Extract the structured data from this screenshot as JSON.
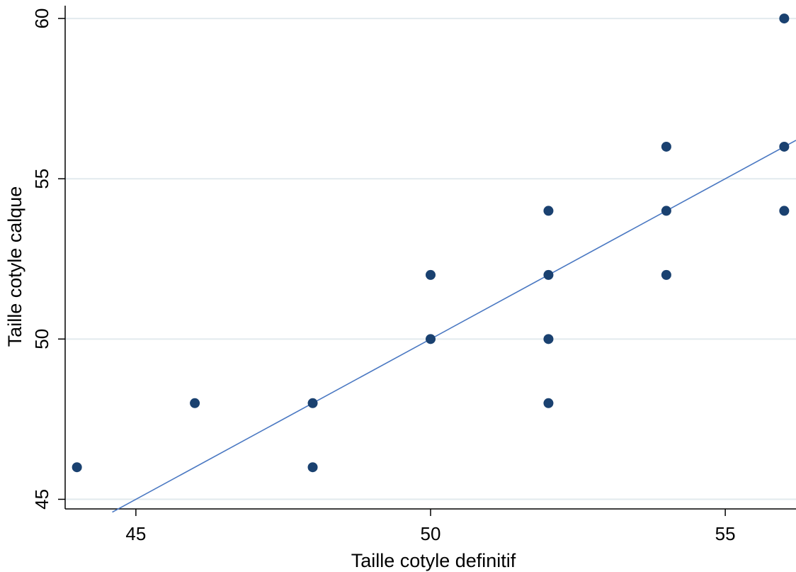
{
  "chart_data": {
    "type": "scatter",
    "xlabel": "Taille cotyle definitif",
    "ylabel": "Taille cotyle calque",
    "xlim": [
      43.8,
      56.2
    ],
    "ylim": [
      44.7,
      60.4
    ],
    "xticks": [
      45,
      50,
      55
    ],
    "yticks": [
      45,
      50,
      55,
      60
    ],
    "grid": "horizontal",
    "colors": {
      "points": "#1a4170",
      "fit_line": "#4a78c2",
      "grid": "#e2eaee",
      "axis": "#000000"
    },
    "series": [
      {
        "type": "scatter",
        "x": [
          44,
          46,
          48,
          48,
          50,
          50,
          52,
          52,
          52,
          52,
          54,
          54,
          54,
          56,
          56,
          56
        ],
        "y": [
          46,
          48,
          48,
          46,
          52,
          50,
          54,
          52,
          50,
          48,
          56,
          54,
          52,
          60,
          56,
          54
        ]
      },
      {
        "type": "line",
        "x": [
          44.6,
          56.2
        ],
        "y": [
          44.6,
          56.2
        ]
      }
    ]
  }
}
